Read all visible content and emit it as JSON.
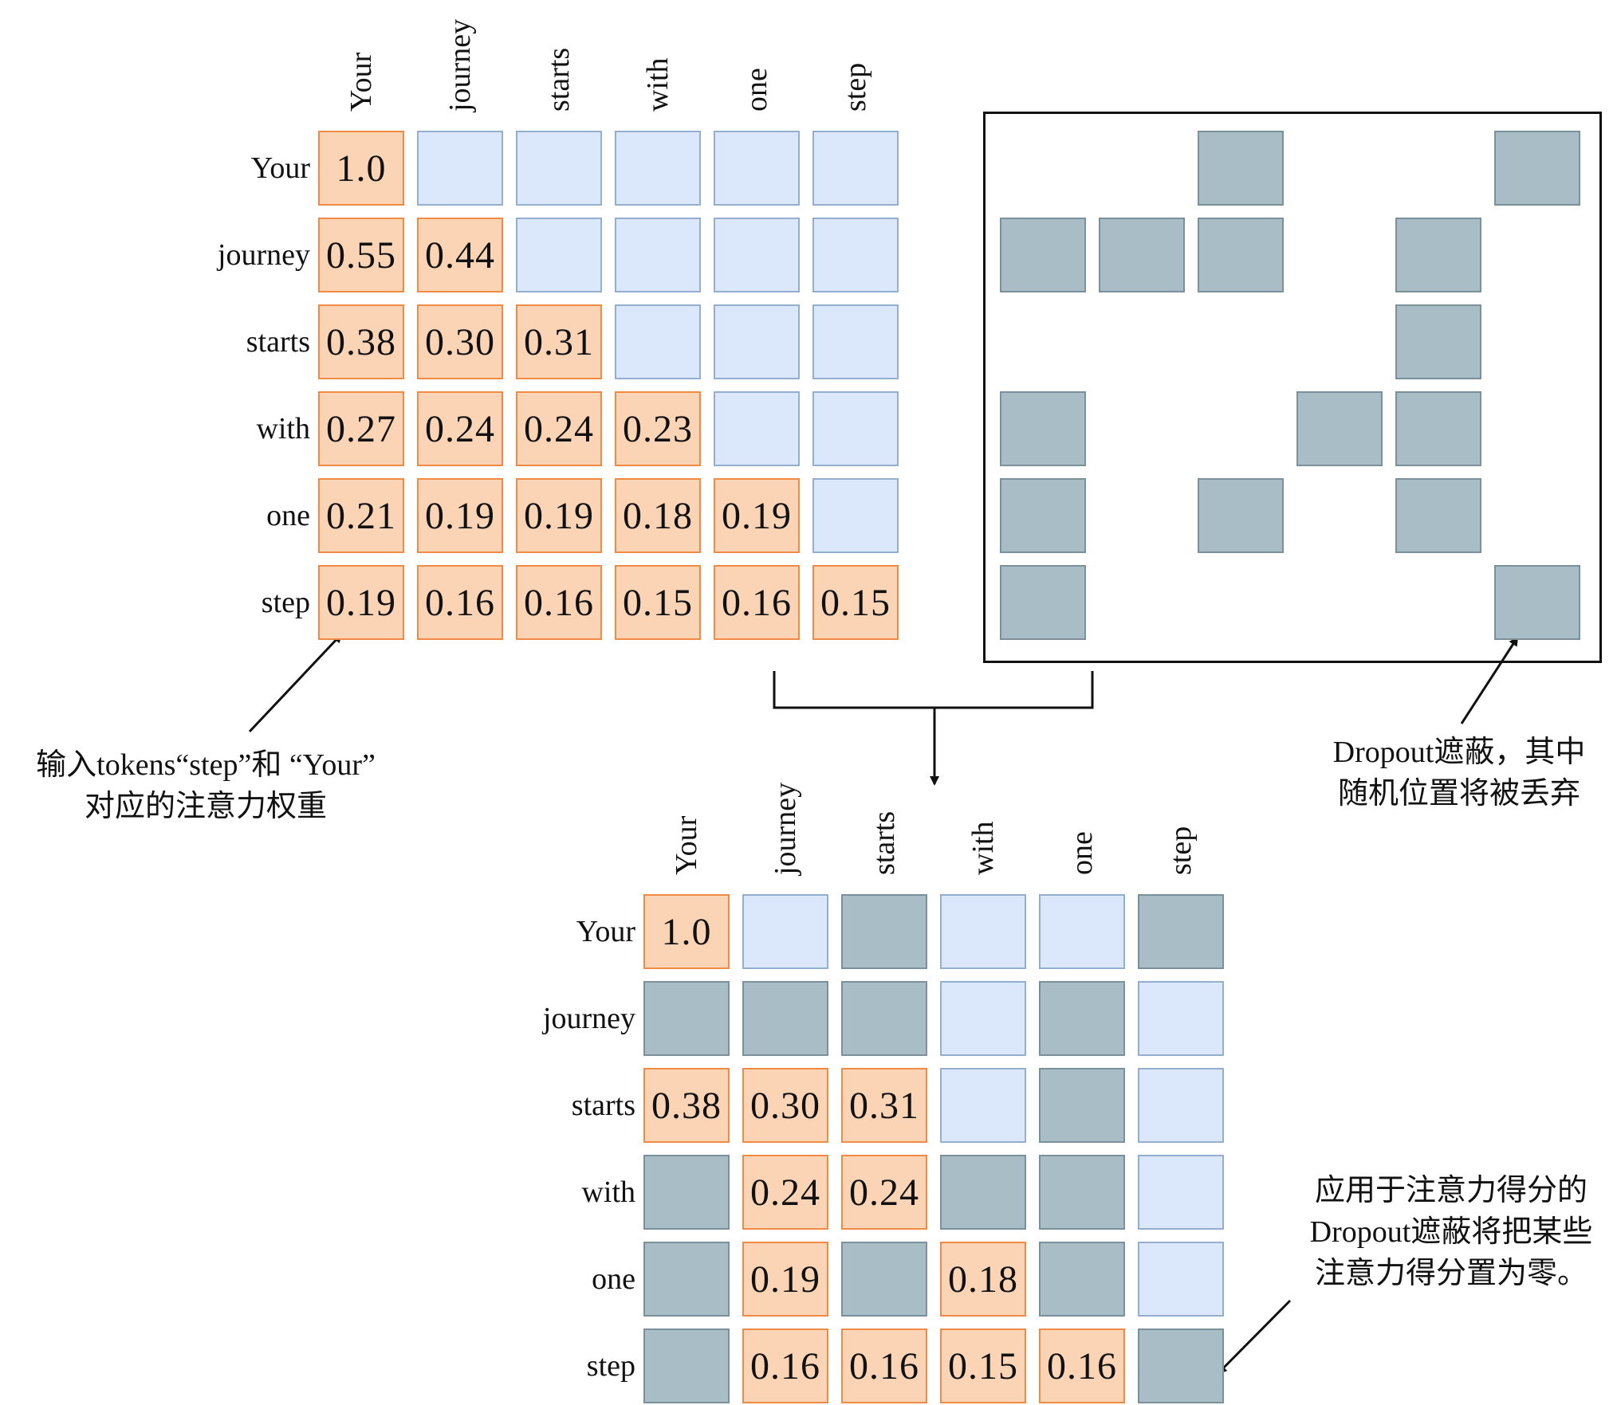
{
  "tokens": [
    "Your",
    "journey",
    "starts",
    "with",
    "one",
    "step"
  ],
  "attention_matrix": [
    [
      "1.0",
      "",
      "",
      "",
      "",
      ""
    ],
    [
      "0.55",
      "0.44",
      "",
      "",
      "",
      ""
    ],
    [
      "0.38",
      "0.30",
      "0.31",
      "",
      "",
      ""
    ],
    [
      "0.27",
      "0.24",
      "0.24",
      "0.23",
      "",
      ""
    ],
    [
      "0.21",
      "0.19",
      "0.19",
      "0.18",
      "0.19",
      ""
    ],
    [
      "0.19",
      "0.16",
      "0.16",
      "0.15",
      "0.16",
      "0.15"
    ]
  ],
  "dropout_mask": [
    [
      0,
      0,
      1,
      0,
      0,
      1
    ],
    [
      1,
      1,
      1,
      0,
      1,
      0
    ],
    [
      0,
      0,
      0,
      0,
      1,
      0
    ],
    [
      1,
      0,
      0,
      1,
      1,
      0
    ],
    [
      1,
      0,
      1,
      0,
      1,
      0
    ],
    [
      1,
      0,
      0,
      0,
      0,
      1
    ]
  ],
  "result_matrix": [
    [
      "1.0",
      "",
      "",
      "",
      "",
      ""
    ],
    [
      "",
      "",
      "",
      "",
      "",
      ""
    ],
    [
      "0.38",
      "0.30",
      "0.31",
      "",
      "",
      ""
    ],
    [
      "",
      "0.24",
      "0.24",
      "",
      "",
      ""
    ],
    [
      "",
      "0.19",
      "",
      "0.18",
      "",
      ""
    ],
    [
      "",
      "0.16",
      "0.16",
      "0.15",
      "0.16",
      ""
    ]
  ],
  "annotations": {
    "weights_line1": "输入tokens“step”和 “Your”",
    "weights_line2": "对应的注意力权重",
    "mask_line1": "Dropout遮蔽，其中",
    "mask_line2": "随机位置将被丢弃",
    "result_line1": "应用于注意力得分的",
    "result_line2": "Dropout遮蔽将把某些",
    "result_line3": "注意力得分置为零。"
  },
  "colors": {
    "weight_fill": "#fbd4b6",
    "weight_border": "#f08a45",
    "empty_fill": "#dbe8fb",
    "empty_border": "#94aed0",
    "masked_fill": "#a9bdc6",
    "masked_border": "#7a919b"
  }
}
